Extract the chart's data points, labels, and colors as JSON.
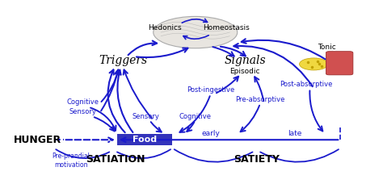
{
  "bg_color": "#ffffff",
  "blue": "#1a1acc",
  "box_color": "#3333bb",
  "box_text_color": "#ffffff",
  "brain_fill": "#e8e5e0",
  "brain_edge": "#aaaaaa",
  "fat_color": "#f0d840",
  "fat_edge": "#c0a000",
  "muscle_color": "#d05050",
  "muscle_edge": "#902020",
  "labels": {
    "hunger": "HUNGER",
    "food": "Food",
    "satiation": "SATIATION",
    "satiety": "SATIETY",
    "triggers": "Triggers",
    "signals": "Signals",
    "hedonics": "Hedonics",
    "homeostasis": "Homeostasis",
    "tonic": "Tonic",
    "episodic": "Episodic",
    "cognitive_left": "Cognitive",
    "sensory_left": "Sensory",
    "sensory_mid": "Sensory",
    "cognitive_mid": "Cognitive",
    "post_ingestive": "Post-ingestive",
    "pre_absorptive": "Pre-absorptive",
    "post_absorptive": "Post-absorptive",
    "pre_prandial": "Pre-prandial\nmotivation",
    "early": "early",
    "late": "late"
  },
  "figsize": [
    4.74,
    2.33
  ],
  "dpi": 100,
  "xlim": [
    0,
    10
  ],
  "ylim": [
    0,
    10
  ]
}
